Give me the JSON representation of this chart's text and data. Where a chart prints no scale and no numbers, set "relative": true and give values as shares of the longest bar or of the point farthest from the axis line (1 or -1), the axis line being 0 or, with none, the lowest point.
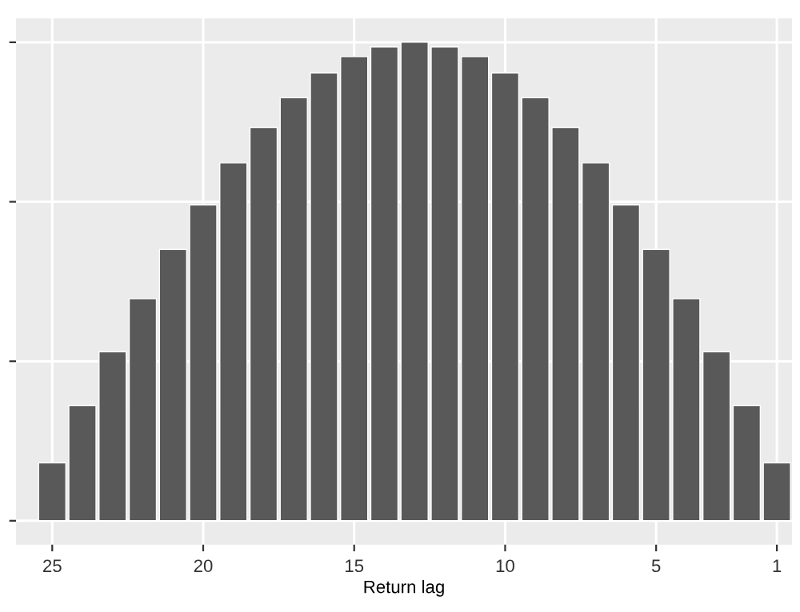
{
  "chart_data": {
    "type": "bar",
    "xlabel": "Return lag",
    "relative": true,
    "color": "#595959",
    "x": [
      25,
      24,
      23,
      22,
      21,
      20,
      19,
      18,
      17,
      16,
      15,
      14,
      13,
      12,
      11,
      10,
      9,
      8,
      7,
      6,
      5,
      4,
      3,
      2,
      1
    ],
    "values": [
      0.121,
      0.241,
      0.353,
      0.464,
      0.567,
      0.66,
      0.748,
      0.822,
      0.884,
      0.936,
      0.97,
      0.99,
      1,
      0.99,
      0.97,
      0.936,
      0.884,
      0.822,
      0.748,
      0.66,
      0.567,
      0.464,
      0.353,
      0.241,
      0.121
    ],
    "xlim": [
      26.2,
      0.5
    ],
    "xticks": [
      25,
      20,
      15,
      10,
      5,
      1
    ],
    "grid": true,
    "tick_labels": "x"
  }
}
